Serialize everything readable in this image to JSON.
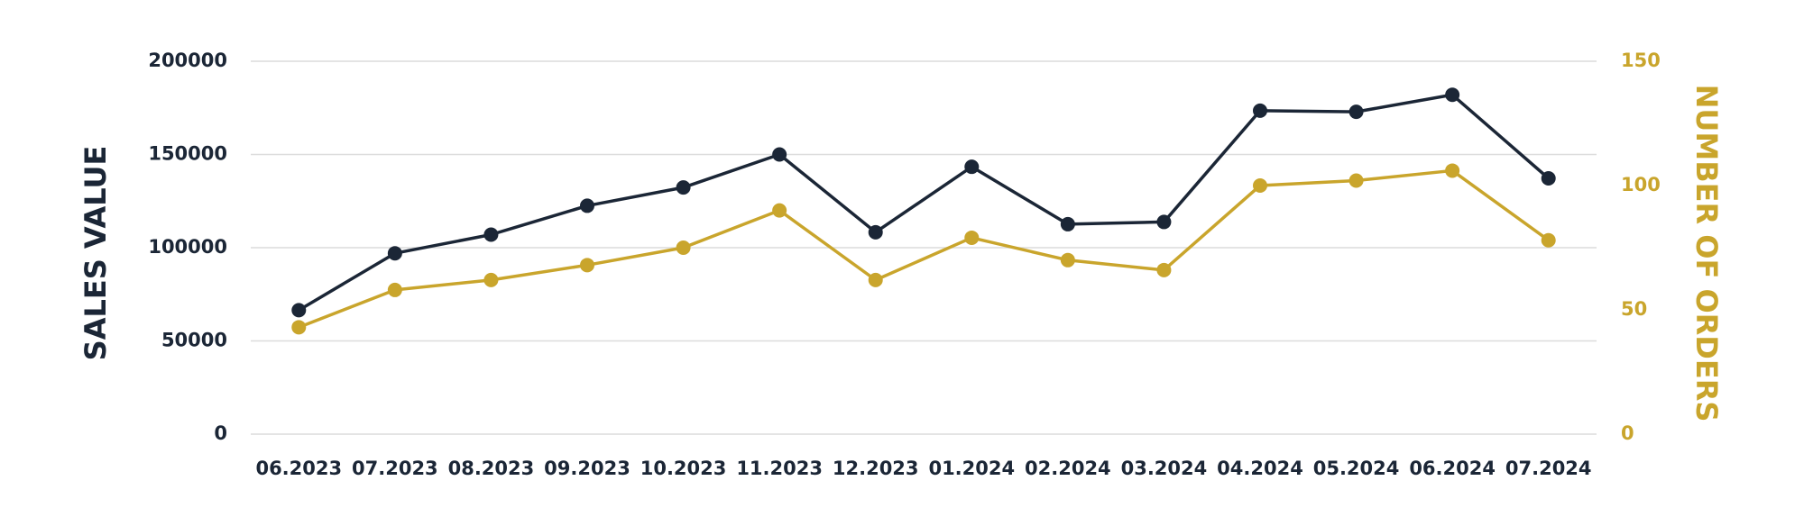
{
  "chart_data": {
    "type": "line",
    "categories": [
      "06.2023",
      "07.2023",
      "08.2023",
      "09.2023",
      "10.2023",
      "11.2023",
      "12.2023",
      "01.2024",
      "02.2024",
      "03.2024",
      "04.2024",
      "05.2024",
      "06.2024",
      "07.2024"
    ],
    "series": [
      {
        "color": "#1b2636",
        "values": [
          66500,
          97000,
          107000,
          122500,
          132300,
          150000,
          108300,
          143400,
          112600,
          113800,
          173500,
          172900,
          182000,
          137200
        ]
      },
      {
        "color": "#c9a52c",
        "axis": "y2",
        "values": [
          43,
          58,
          62,
          68,
          75,
          90,
          62,
          79,
          70,
          66,
          100,
          102,
          106,
          78
        ]
      }
    ],
    "ylabel": "SALES VALUE",
    "y2label": "NUMBER OF ORDERS",
    "ylim": [
      0,
      200000
    ],
    "yticks": [
      0,
      50000,
      100000,
      150000,
      200000
    ],
    "y2lim": [
      0,
      150
    ],
    "y2ticks": [
      0,
      50,
      100,
      150
    ],
    "grid": true
  }
}
